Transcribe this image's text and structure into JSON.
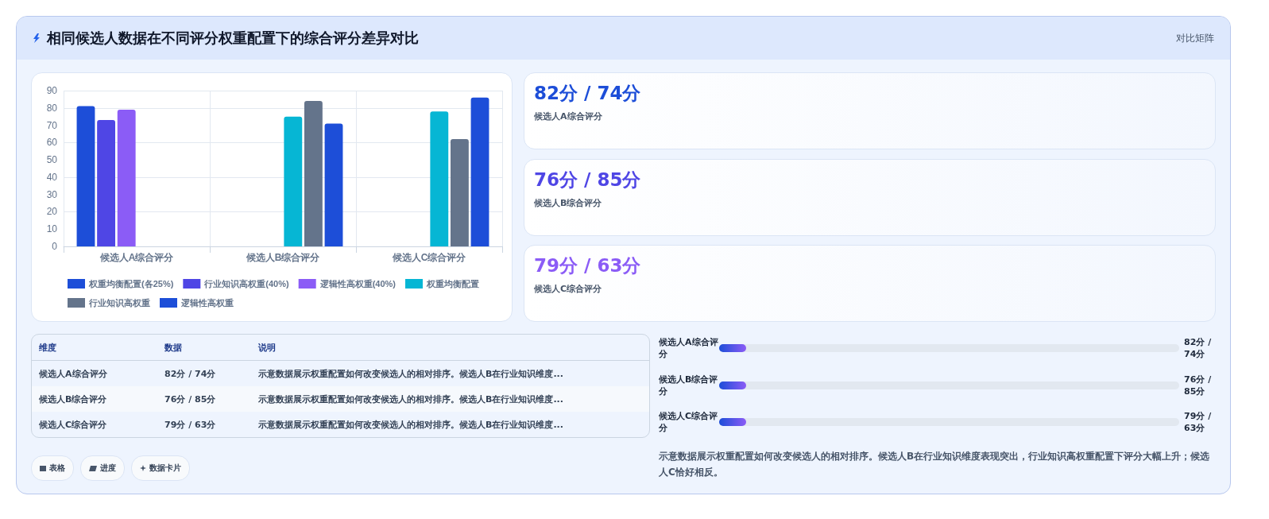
{
  "chart_data": [
    {
      "type": "other",
      "title": "相同候选人数据在不同评分权重配置下的综合评分差异对比",
      "subtitle": "对比矩阵"
    },
    {
      "type": "bar",
      "categories": [
        "候选人A综合评分",
        "候选人B综合评分",
        "候选人C综合评分"
      ],
      "series": [
        {
          "name": "权重均衡配置(各25%)",
          "color": "#1d4ed8",
          "values": [
            81,
            null,
            null
          ]
        },
        {
          "name": "行业知识高权重(40%)",
          "color": "#4f46e5",
          "values": [
            73,
            null,
            null
          ]
        },
        {
          "name": "逻辑性高权重(40%)",
          "color": "#8b5cf6",
          "values": [
            79,
            null,
            null
          ]
        },
        {
          "name": "权重均衡配置",
          "color": "#06b6d4",
          "values": [
            null,
            75,
            78
          ]
        },
        {
          "name": "行业知识高权重",
          "color": "#64748b",
          "values": [
            null,
            84,
            62
          ]
        },
        {
          "name": "逻辑性高权重",
          "color": "#1d4ed8",
          "values": [
            null,
            71,
            86
          ]
        }
      ],
      "ylim": [
        0,
        90
      ],
      "yticks": [
        0,
        10,
        20,
        30,
        40,
        50,
        60,
        70,
        80,
        90
      ],
      "grid": true,
      "legend": "bottom"
    },
    {
      "type": "other",
      "categories": [
        "候选人A综合评分",
        "候选人B综合评分",
        "候选人C综合评分"
      ],
      "value_labels": [
        "82分 / 74分",
        "76分 / 85分",
        "79分 / 63分"
      ]
    },
    {
      "type": "other",
      "categories": [
        "维度",
        "数据",
        "说明"
      ],
      "y_categories": [
        "候选人A综合评分",
        "候选人B综合评分",
        "候选人C综合评分"
      ],
      "cell_labels": [
        [
          "82分 / 74分",
          "示意数据展示权重配置如何改变候选人的相对排序。候选人B在行业知识维度..."
        ],
        [
          "76分 / 85分",
          "示意数据展示权重配置如何改变候选人的相对排序。候选人B在行业知识维度..."
        ],
        [
          "79分 / 63分",
          "示意数据展示权重配置如何改变候选人的相对排序。候选人B在行业知识维度..."
        ]
      ],
      "annotations": [
        "表格",
        "进度",
        "数据卡片"
      ]
    },
    {
      "type": "other",
      "y_categories": [
        "候选人A综合评分",
        "候选人B综合评分",
        "候选人C综合评分"
      ],
      "value_labels": [
        "82分 / 74分",
        "76分 / 85分",
        "79分 / 63分"
      ],
      "annotations": [
        "示意数据展示权重配置如何改变候选人的相对排序。候选人B在行业知识维度表现突出，行业知识高权重配置下评分大幅上升；候选人C恰好相反。"
      ]
    }
  ]
}
